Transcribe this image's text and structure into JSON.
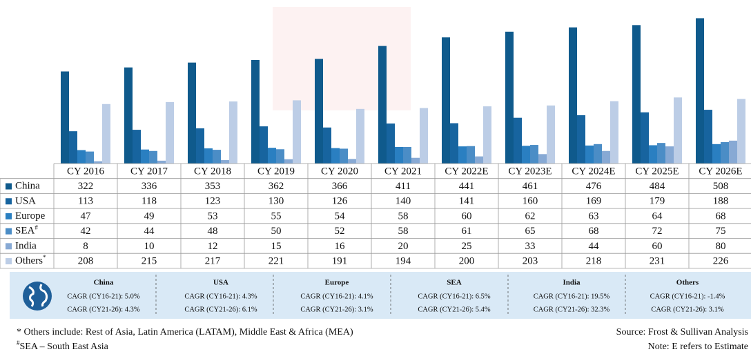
{
  "chart_data": {
    "type": "bar",
    "categories": [
      "CY 2016",
      "CY 2017",
      "CY 2018",
      "CY 2019",
      "CY 2020",
      "CY 2021",
      "CY 2022E",
      "CY 2023E",
      "CY 2024E",
      "CY 2025E",
      "CY 2026E"
    ],
    "series": [
      {
        "name": "China",
        "color": "#0f5a8c",
        "values": [
          322,
          336,
          353,
          362,
          366,
          411,
          441,
          461,
          476,
          484,
          508
        ]
      },
      {
        "name": "USA",
        "color": "#17649f",
        "values": [
          113,
          118,
          123,
          130,
          126,
          140,
          141,
          160,
          169,
          179,
          188
        ]
      },
      {
        "name": "Europe",
        "color": "#2a7fc1",
        "values": [
          47,
          49,
          53,
          55,
          54,
          58,
          60,
          62,
          63,
          64,
          68
        ]
      },
      {
        "name": "SEA",
        "marker": "#",
        "color": "#4b8dc6",
        "values": [
          42,
          44,
          48,
          50,
          52,
          58,
          61,
          65,
          68,
          72,
          75
        ]
      },
      {
        "name": "India",
        "color": "#87a9d4",
        "values": [
          8,
          10,
          12,
          15,
          16,
          20,
          25,
          33,
          44,
          60,
          80
        ]
      },
      {
        "name": "Others",
        "marker": "*",
        "color": "#bccde6",
        "values": [
          208,
          215,
          217,
          221,
          191,
          194,
          200,
          203,
          218,
          231,
          226
        ]
      }
    ],
    "ylim": [
      0,
      550
    ]
  },
  "cagr": [
    {
      "region": "China",
      "lines": [
        "CAGR (CY16-21): 5.0%",
        "CAGR (CY21-26): 4.3%"
      ]
    },
    {
      "region": "USA",
      "lines": [
        "CAGR (CY16-21): 4.3%",
        "CAGR (CY21-26): 6.1%"
      ]
    },
    {
      "region": "Europe",
      "lines": [
        "CAGR (CY16-21): 4.1%",
        "CAGR (CY21-26): 3.1%"
      ]
    },
    {
      "region": "SEA",
      "lines": [
        "CAGR (CY16-21): 6.5%",
        "CAGR (CY21-26): 5.4%"
      ]
    },
    {
      "region": "India",
      "lines": [
        "CAGR (CY16-21): 19.5%",
        "CAGR (CY21-26): 32.3%"
      ]
    },
    {
      "region": "Others",
      "lines": [
        "CAGR (CY16-21): -1.4%",
        "CAGR (CY21-26): 3.1%"
      ]
    }
  ],
  "footnotes": {
    "others": "* Others include: Rest of Asia, Latin America (LATAM), Middle East & Africa (MEA)",
    "sea_marker": "#",
    "sea": "SEA – South East Asia"
  },
  "source": "Source: Frost & Sullivan Analysis",
  "note": "Note: E refers to Estimate"
}
